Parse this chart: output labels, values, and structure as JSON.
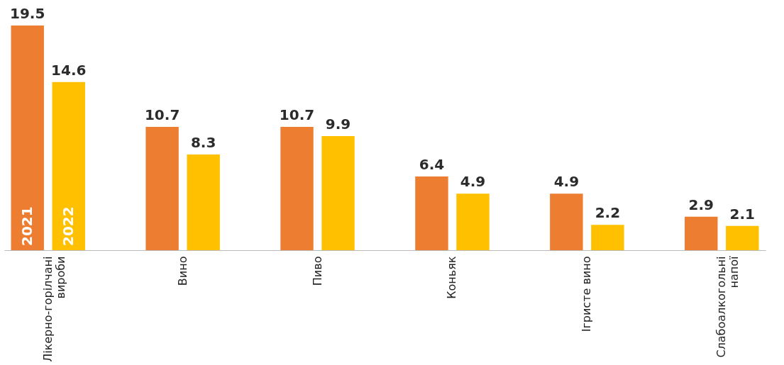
{
  "chart_data": {
    "type": "bar",
    "categories": [
      "Лікерно-горілчані вироби",
      "Вино",
      "Пиво",
      "Коньяк",
      "Ігристе вино",
      "Слабоалкогольні напої"
    ],
    "series": [
      {
        "name": "2021",
        "color": "#ed7d31",
        "values": [
          19.5,
          10.7,
          10.7,
          6.4,
          4.9,
          2.9
        ]
      },
      {
        "name": "2022",
        "color": "#ffc000",
        "values": [
          14.6,
          8.3,
          9.9,
          4.9,
          2.2,
          2.1
        ]
      }
    ],
    "data_labels": true,
    "grid": false,
    "legend": false
  }
}
